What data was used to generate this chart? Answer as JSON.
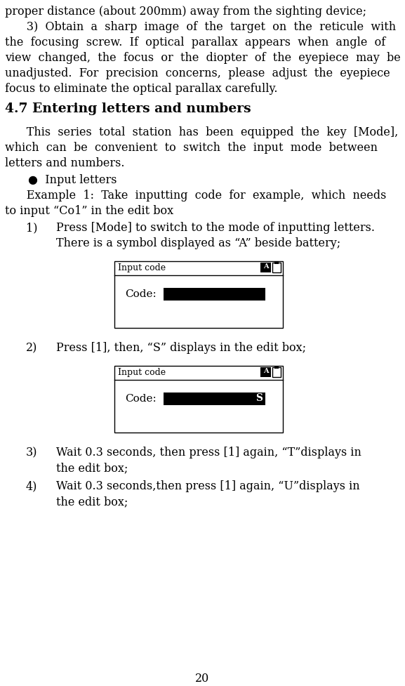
{
  "bg_color": "#ffffff",
  "text_color": "#000000",
  "page_number": "20",
  "lines_top": [
    "proper distance (about 200mm) away from the sighting device;",
    "      3)  Obtain  a  sharp  image  of  the  target  on  the  reticule  with",
    "the  focusing  screw.  If  optical  parallax  appears  when  angle  of",
    "view  changed,  the  focus  or  the  diopter  of  the  eyepiece  may  be",
    "unadjusted.  For  precision  concerns,  please  adjust  the  eyepiece",
    "focus to eliminate the optical parallax carefully."
  ],
  "section_title": "4.7 Entering letters and numbers",
  "para3_lines": [
    "      This  series  total  station  has  been  equipped  the  key  [Mode],",
    "which  can  be  convenient  to  switch  the  input  mode  between",
    "letters and numbers."
  ],
  "bullet": "●  Input letters",
  "example_lines": [
    "      Example  1:  Take  inputting  code  for  example,  which  needs",
    "to input “Co1” in the edit box"
  ],
  "item1_num": "1)",
  "item1_lines": [
    "Press [Mode] to switch to the mode of inputting letters.",
    "There is a symbol displayed as “A” beside battery;"
  ],
  "box1_title": "Input code",
  "box1_label": "Code:",
  "box1_has_s": false,
  "item2_num": "2)",
  "item2_text": "Press [1], then, “S” displays in the edit box;",
  "box2_title": "Input code",
  "box2_label": "Code:",
  "box2_has_s": true,
  "item3_num": "3)",
  "item3_lines": [
    "Wait 0.3 seconds, then press [1] again, “T”displays in",
    "the edit box;"
  ],
  "item4_num": "4)",
  "item4_lines": [
    "Wait 0.3 seconds,then press [1] again, “U”displays in",
    "the edit box;"
  ]
}
